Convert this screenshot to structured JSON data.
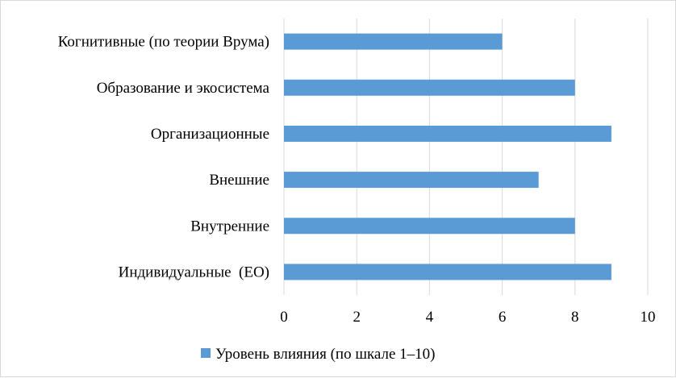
{
  "chart_data": {
    "type": "bar",
    "orientation": "horizontal",
    "categories": [
      "Индивидуальные  (ЕО)",
      "Внутренние",
      "Внешние",
      "Организационные",
      "Образование и экосистема",
      "Когнитивные (по теории Врума)"
    ],
    "series": [
      {
        "name": "Уровень влияния (по шкале 1–10)",
        "values": [
          9,
          8,
          7,
          9,
          8,
          6
        ],
        "color": "#5b9bd5"
      }
    ],
    "xlim": [
      0,
      10
    ],
    "x_ticks": [
      "0",
      "2",
      "4",
      "6",
      "8",
      "10"
    ],
    "grid": "vertical",
    "gridline_color": "#d9d9d9",
    "legend_position": "bottom"
  }
}
